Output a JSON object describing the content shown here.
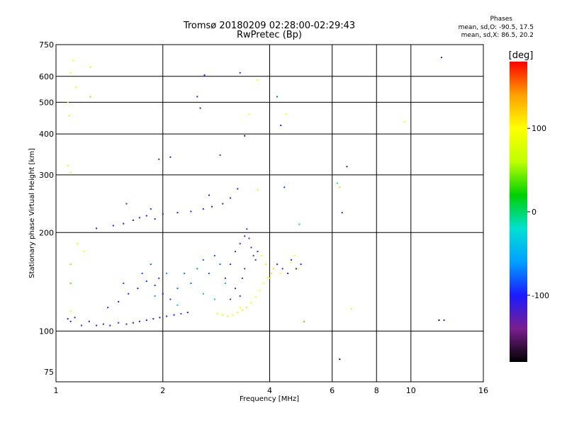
{
  "chart_data": {
    "type": "scatter",
    "title": "Tromsø 20180209 02:28:00-02:29:43",
    "subtitle": "RwPretec (Bp)",
    "stats": {
      "heading": "Phases",
      "line1": "mean, sd,O: -90.5, 17.5",
      "line2": "mean, sd,X:  86.5, 20.2"
    },
    "xlabel": "Frequency [MHz]",
    "ylabel": "Stationary phase Virtual Height [km]",
    "x_scale": "log",
    "y_scale": "log",
    "xlim": [
      1,
      16
    ],
    "ylim": [
      70,
      750
    ],
    "x_ticks": [
      1,
      2,
      4,
      6,
      8,
      10,
      16
    ],
    "y_ticks": [
      75,
      100,
      200,
      300,
      400,
      500,
      600,
      750
    ],
    "grid": true,
    "colorbar": {
      "label": "[deg]",
      "range": [
        -180,
        180
      ],
      "ticks": [
        100,
        0,
        -100
      ],
      "colors": [
        "#000000",
        "#7a1f8f",
        "#1a1aff",
        "#00a0ff",
        "#00e0d0",
        "#00d000",
        "#c0ff00",
        "#ffff00",
        "#ffa000",
        "#ff0000"
      ]
    },
    "series": [
      {
        "points": [
          [
            1.08,
            109,
            -100
          ],
          [
            1.1,
            107,
            -95
          ],
          [
            1.13,
            110,
            -110
          ],
          [
            1.18,
            104,
            -90
          ],
          [
            1.24,
            107,
            -100
          ],
          [
            1.3,
            104,
            -105
          ],
          [
            1.36,
            105,
            -110
          ],
          [
            1.42,
            104,
            -100
          ],
          [
            1.5,
            106,
            -95
          ],
          [
            1.58,
            105,
            -110
          ],
          [
            1.65,
            106,
            -100
          ],
          [
            1.72,
            107,
            -105
          ],
          [
            1.8,
            108,
            -100
          ],
          [
            1.88,
            109,
            -95
          ],
          [
            1.96,
            110,
            -100
          ],
          [
            2.05,
            111,
            -105
          ],
          [
            2.15,
            112,
            -100
          ],
          [
            2.25,
            113,
            -90
          ],
          [
            2.35,
            114,
            -100
          ],
          [
            1.4,
            118,
            -105
          ],
          [
            1.5,
            123,
            -100
          ],
          [
            1.6,
            130,
            -95
          ],
          [
            1.7,
            135,
            -100
          ],
          [
            1.8,
            142,
            -90
          ],
          [
            1.9,
            138,
            -95
          ],
          [
            2.0,
            130,
            -100
          ],
          [
            1.55,
            140,
            -90
          ],
          [
            1.75,
            150,
            -85
          ],
          [
            1.85,
            160,
            -80
          ],
          [
            1.95,
            145,
            -95
          ],
          [
            2.1,
            125,
            -90
          ],
          [
            2.2,
            135,
            -80
          ],
          [
            2.3,
            150,
            -70
          ],
          [
            2.4,
            140,
            -75
          ],
          [
            2.5,
            155,
            -70
          ],
          [
            2.6,
            165,
            -80
          ],
          [
            2.7,
            150,
            -75
          ],
          [
            2.8,
            170,
            -85
          ],
          [
            2.9,
            160,
            -80
          ],
          [
            2.2,
            120,
            -50
          ],
          [
            2.6,
            130,
            -40
          ],
          [
            2.8,
            125,
            -30
          ],
          [
            3.0,
            140,
            -45
          ],
          [
            1.9,
            128,
            -60
          ],
          [
            2.05,
            150,
            -60
          ],
          [
            1.3,
            206,
            -100
          ],
          [
            1.45,
            210,
            -95
          ],
          [
            1.55,
            213,
            -100
          ],
          [
            1.65,
            218,
            -105
          ],
          [
            1.72,
            222,
            -95
          ],
          [
            1.8,
            225,
            -100
          ],
          [
            1.9,
            220,
            -100
          ],
          [
            1.85,
            236,
            -90
          ],
          [
            2.0,
            228,
            -95
          ],
          [
            2.2,
            230,
            -100
          ],
          [
            2.4,
            232,
            -105
          ],
          [
            2.6,
            236,
            -95
          ],
          [
            2.75,
            240,
            -100
          ],
          [
            2.95,
            245,
            -95
          ],
          [
            3.1,
            255,
            -100
          ],
          [
            3.25,
            272,
            -105
          ],
          [
            2.7,
            260,
            -100
          ],
          [
            1.58,
            245,
            -120
          ],
          [
            3.0,
            145,
            -120
          ],
          [
            3.1,
            160,
            -125
          ],
          [
            3.2,
            175,
            -130
          ],
          [
            3.3,
            185,
            -125
          ],
          [
            3.4,
            195,
            -120
          ],
          [
            3.45,
            205,
            -130
          ],
          [
            3.5,
            192,
            -140
          ],
          [
            3.55,
            180,
            -135
          ],
          [
            3.6,
            170,
            -140
          ],
          [
            3.65,
            165,
            -130
          ],
          [
            3.7,
            175,
            -120
          ],
          [
            3.4,
            155,
            -135
          ],
          [
            3.35,
            145,
            -130
          ],
          [
            3.2,
            135,
            -125
          ],
          [
            3.1,
            125,
            -130
          ],
          [
            3.3,
            128,
            -135
          ],
          [
            2.85,
            113,
            80
          ],
          [
            2.95,
            112,
            85
          ],
          [
            3.05,
            111,
            90
          ],
          [
            3.15,
            112,
            95
          ],
          [
            3.25,
            114,
            90
          ],
          [
            3.35,
            116,
            85
          ],
          [
            3.45,
            118,
            80
          ],
          [
            3.55,
            122,
            90
          ],
          [
            3.65,
            127,
            95
          ],
          [
            3.75,
            133,
            100
          ],
          [
            3.85,
            140,
            95
          ],
          [
            3.95,
            146,
            90
          ],
          [
            4.05,
            150,
            110
          ],
          [
            4.1,
            155,
            115
          ],
          [
            4.0,
            145,
            120
          ],
          [
            3.9,
            160,
            110
          ],
          [
            3.8,
            170,
            85
          ],
          [
            4.3,
            150,
            95
          ],
          [
            4.6,
            162,
            100
          ],
          [
            4.8,
            155,
            90
          ],
          [
            4.7,
            170,
            95
          ],
          [
            3.3,
            118,
            100
          ],
          [
            4.2,
            160,
            -120
          ],
          [
            4.35,
            155,
            -115
          ],
          [
            4.5,
            150,
            -110
          ],
          [
            4.6,
            165,
            -105
          ],
          [
            4.75,
            155,
            -100
          ],
          [
            4.9,
            160,
            -110
          ],
          [
            1.08,
            320,
            90
          ],
          [
            1.08,
            500,
            75
          ],
          [
            1.09,
            455,
            80
          ],
          [
            1.1,
            160,
            50
          ],
          [
            1.1,
            115,
            90
          ],
          [
            1.12,
            670,
            100
          ],
          [
            1.14,
            555,
            85
          ],
          [
            1.25,
            640,
            110
          ],
          [
            1.25,
            520,
            130
          ],
          [
            1.15,
            185,
            85
          ],
          [
            1.1,
            140,
            40
          ],
          [
            1.2,
            175,
            95
          ],
          [
            1.1,
            615,
            95
          ],
          [
            1.1,
            305,
            90
          ],
          [
            1.95,
            335,
            -130
          ],
          [
            2.1,
            340,
            -110
          ],
          [
            2.5,
            520,
            -110
          ],
          [
            2.55,
            480,
            -105
          ],
          [
            2.62,
            605,
            -100
          ],
          [
            2.9,
            345,
            -140
          ],
          [
            3.3,
            615,
            -95
          ],
          [
            3.4,
            395,
            -160
          ],
          [
            3.5,
            460,
            100
          ],
          [
            3.7,
            585,
            95
          ],
          [
            4.2,
            520,
            -80
          ],
          [
            4.3,
            425,
            -105
          ],
          [
            4.45,
            460,
            95
          ],
          [
            4.4,
            275,
            -90
          ],
          [
            4.85,
            212,
            -40
          ],
          [
            5.0,
            107,
            40
          ],
          [
            6.2,
            283,
            -20
          ],
          [
            6.3,
            275,
            120
          ],
          [
            6.4,
            230,
            -110
          ],
          [
            6.6,
            318,
            -150
          ],
          [
            6.8,
            117,
            80
          ],
          [
            6.3,
            82,
            -170
          ],
          [
            9.6,
            435,
            100
          ],
          [
            12.0,
            108,
            -170
          ],
          [
            12.4,
            108,
            -150
          ],
          [
            12.2,
            685,
            -150
          ],
          [
            3.7,
            270,
            110
          ]
        ]
      }
    ]
  }
}
